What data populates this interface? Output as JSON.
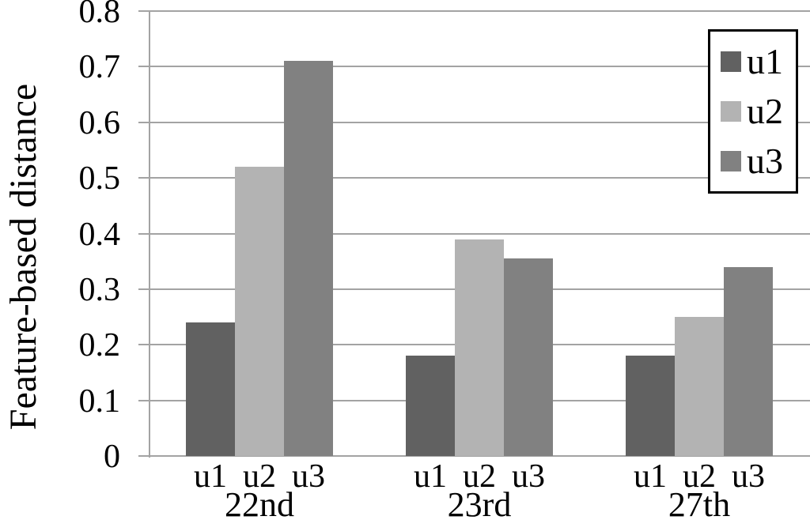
{
  "chart_data": {
    "type": "bar",
    "title": "",
    "ylabel": "Feature-based distance",
    "xlabel": "",
    "ylim": [
      0,
      0.8
    ],
    "ytick_step": 0.1,
    "ytick_labels": [
      "0",
      "0.1",
      "0.2",
      "0.3",
      "0.4",
      "0.5",
      "0.6",
      "0.7",
      "0.8"
    ],
    "grid": true,
    "legend_position": "top-right",
    "categories": [
      "22nd",
      "23rd",
      "27th"
    ],
    "bar_labels": [
      "u1",
      "u2",
      "u3"
    ],
    "series": [
      {
        "name": "u1",
        "color": "#616161",
        "values": [
          0.24,
          0.18,
          0.18
        ]
      },
      {
        "name": "u2",
        "color": "#b3b3b3",
        "values": [
          0.52,
          0.39,
          0.25
        ]
      },
      {
        "name": "u3",
        "color": "#818181",
        "values": [
          0.71,
          0.355,
          0.34
        ]
      }
    ],
    "colors": {
      "gridline": "#a3a3a3",
      "axis": "#a3a3a3",
      "text": "#000000",
      "background": "#ffffff",
      "legend_border": "#000000"
    }
  }
}
